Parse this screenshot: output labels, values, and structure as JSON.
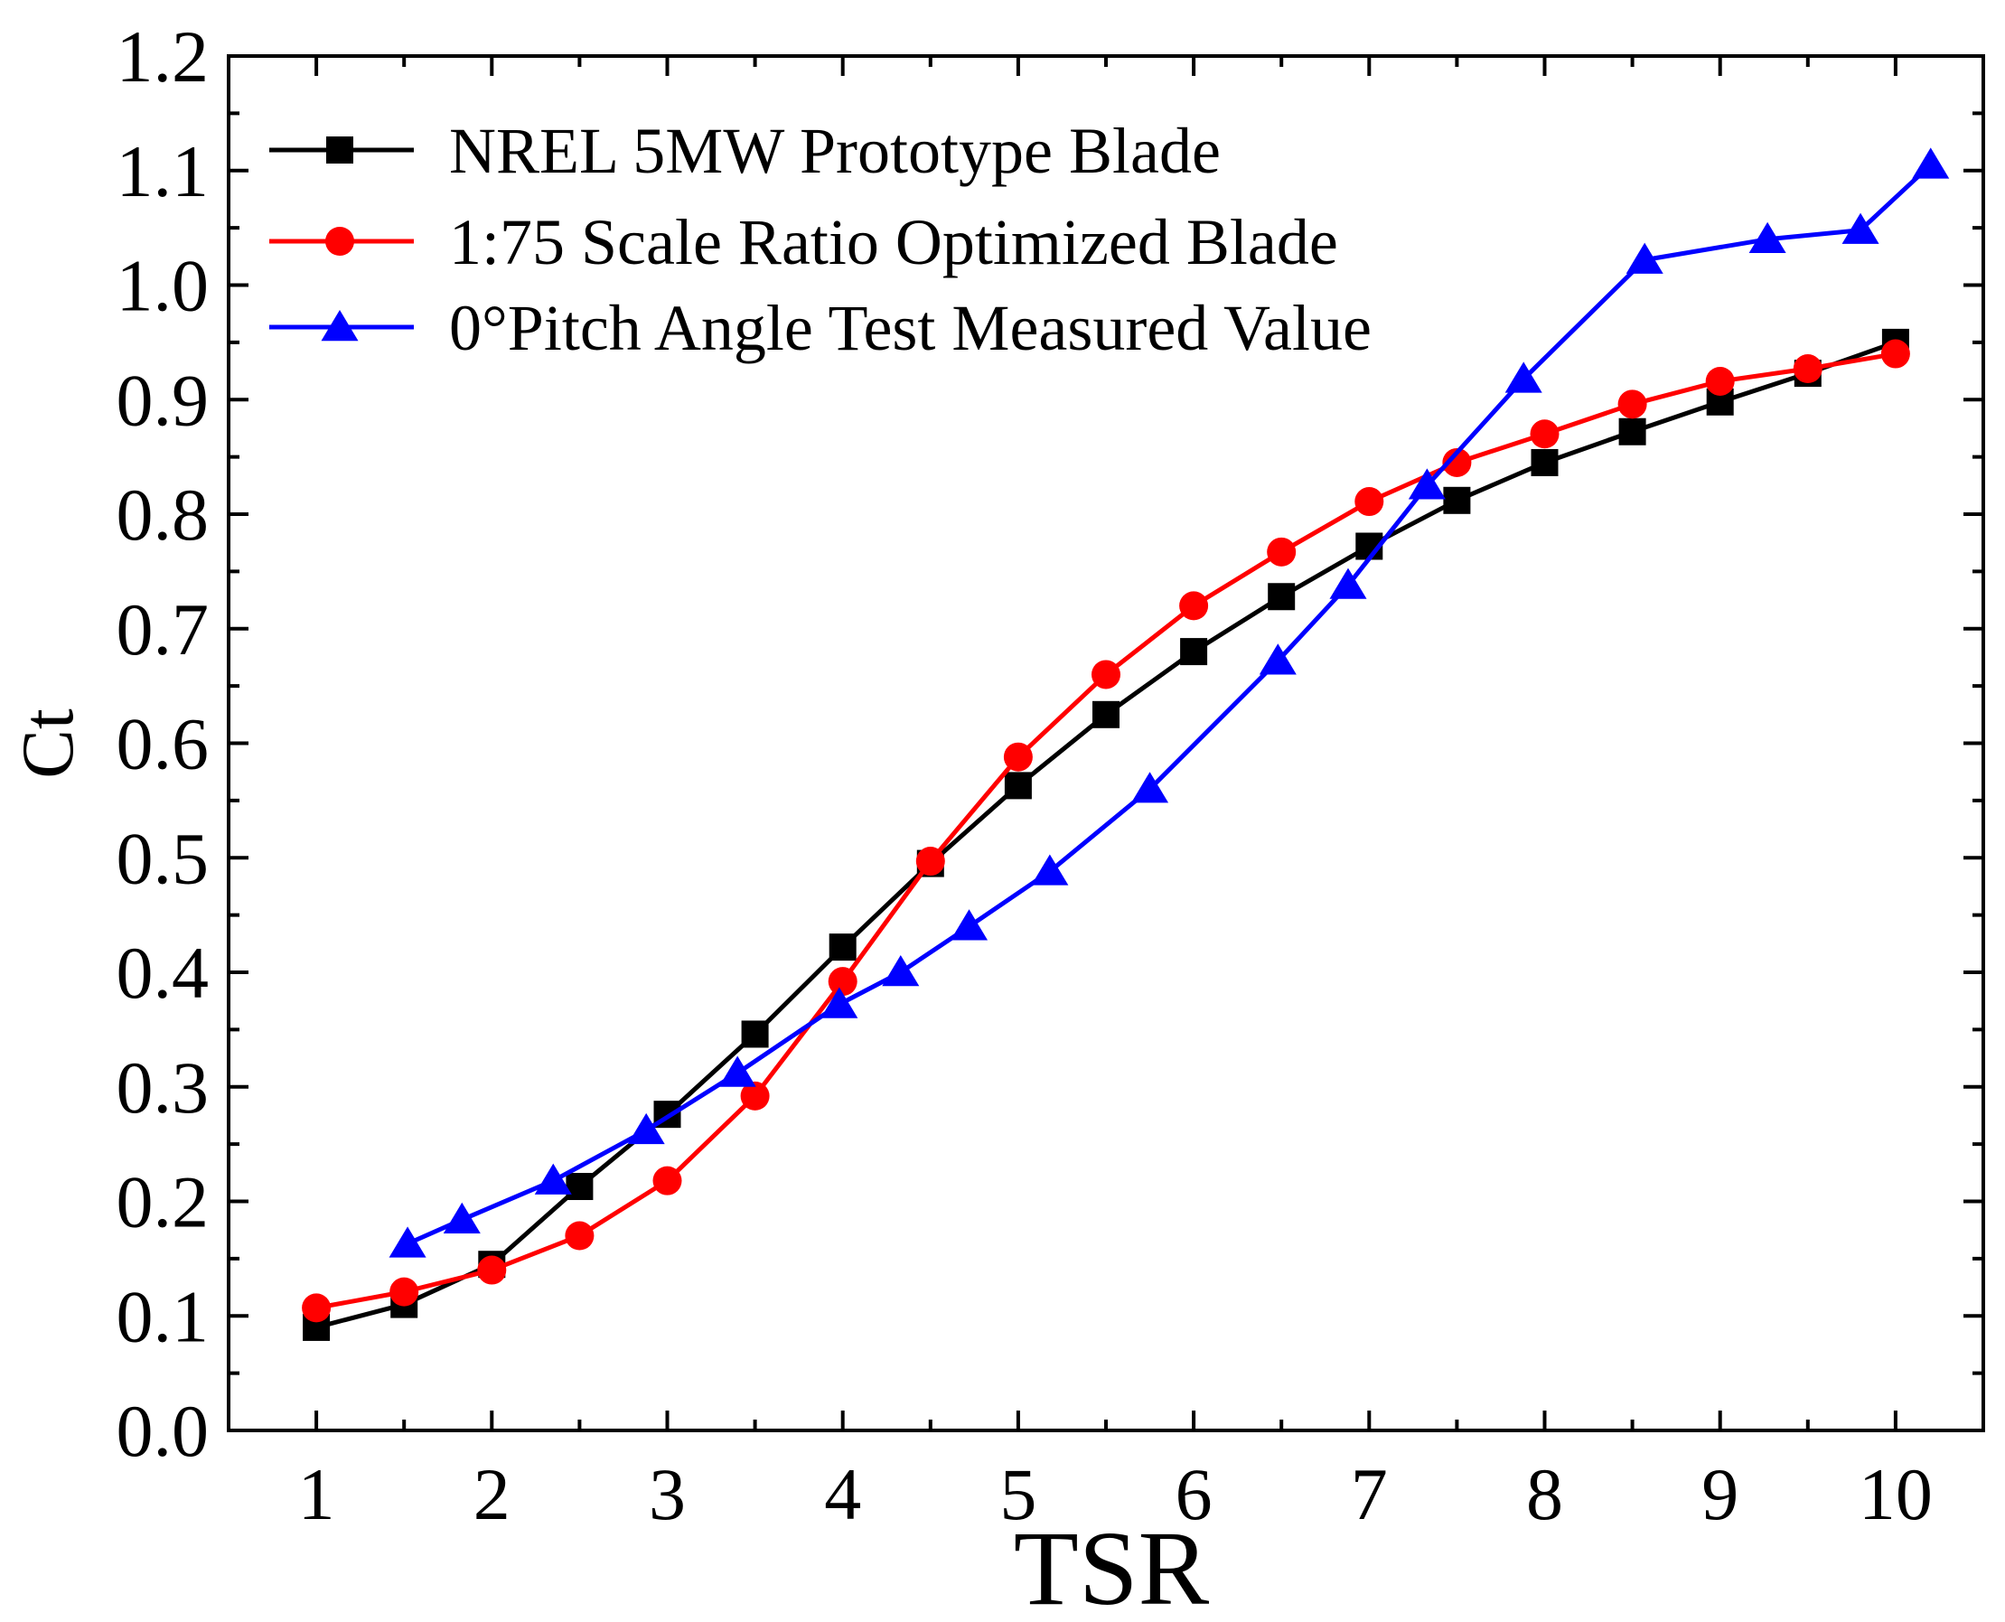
{
  "chart_data": {
    "type": "line",
    "title": "",
    "xlabel": "TSR",
    "ylabel": "Ct",
    "xlim": [
      0.5,
      10.5
    ],
    "ylim": [
      0.0,
      1.2
    ],
    "xticks": [
      1,
      2,
      3,
      4,
      5,
      6,
      7,
      8,
      9,
      10
    ],
    "yticks": [
      0.0,
      0.1,
      0.2,
      0.3,
      0.4,
      0.5,
      0.6,
      0.7,
      0.8,
      0.9,
      1.0,
      1.1,
      1.2
    ],
    "xtick_labels": [
      "1",
      "2",
      "3",
      "4",
      "5",
      "6",
      "7",
      "8",
      "9",
      "10"
    ],
    "ytick_labels": [
      "0.0",
      "0.1",
      "0.2",
      "0.3",
      "0.4",
      "0.5",
      "0.6",
      "0.7",
      "0.8",
      "0.9",
      "1.0",
      "1.1",
      "1.2"
    ],
    "grid": false,
    "legend_position": "top-left",
    "series": [
      {
        "name": "NREL 5MW Prototype Blade",
        "color": "#000000",
        "marker": "square",
        "x": [
          1,
          1.5,
          2,
          2.5,
          3,
          3.5,
          4,
          4.5,
          5,
          5.5,
          6,
          6.5,
          7,
          7.5,
          8,
          8.5,
          9,
          9.5,
          10
        ],
        "y": [
          0.09,
          0.11,
          0.145,
          0.213,
          0.276,
          0.346,
          0.422,
          0.495,
          0.563,
          0.625,
          0.68,
          0.728,
          0.772,
          0.812,
          0.845,
          0.872,
          0.898,
          0.923,
          0.95
        ]
      },
      {
        "name": "1:75 Scale Ratio Optimized Blade",
        "color": "#ff0000",
        "marker": "circle",
        "x": [
          1,
          1.5,
          2,
          2.5,
          3,
          3.5,
          4,
          4.5,
          5,
          5.5,
          6,
          6.5,
          7,
          7.5,
          8,
          8.5,
          9,
          9.5,
          10
        ],
        "y": [
          0.107,
          0.121,
          0.14,
          0.17,
          0.218,
          0.292,
          0.392,
          0.497,
          0.588,
          0.66,
          0.72,
          0.767,
          0.811,
          0.845,
          0.87,
          0.896,
          0.916,
          0.927,
          0.94
        ]
      },
      {
        "name": "0°Pitch Angle Test Measured Value",
        "color": "#0000ff",
        "marker": "triangle",
        "x": [
          1.52,
          1.83,
          2.35,
          2.88,
          3.4,
          3.98,
          4.33,
          4.72,
          5.18,
          5.75,
          6.48,
          6.88,
          7.33,
          7.88,
          8.57,
          9.27,
          9.8,
          10.2
        ],
        "y": [
          0.163,
          0.184,
          0.218,
          0.262,
          0.312,
          0.372,
          0.4,
          0.44,
          0.488,
          0.56,
          0.672,
          0.738,
          0.825,
          0.918,
          1.022,
          1.04,
          1.048,
          1.105
        ]
      }
    ]
  }
}
